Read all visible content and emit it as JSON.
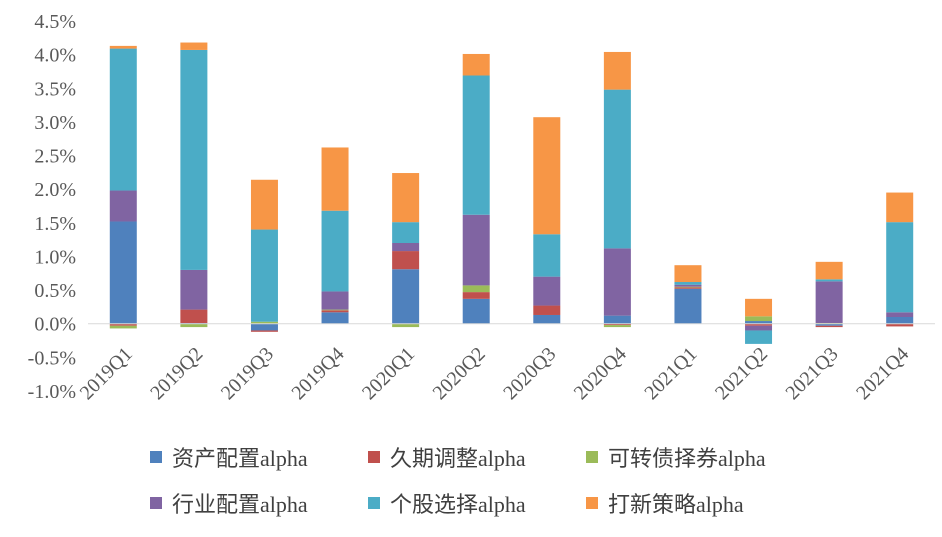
{
  "chart_data": {
    "type": "bar",
    "stacked": true,
    "categories": [
      "2019Q1",
      "2019Q2",
      "2019Q3",
      "2019Q4",
      "2020Q1",
      "2020Q2",
      "2020Q3",
      "2020Q4",
      "2021Q1",
      "2021Q2",
      "2021Q3",
      "2021Q4"
    ],
    "series": [
      {
        "name": "资产配置alpha",
        "color": "#4F81BD",
        "values": [
          1.52,
          0.01,
          -0.1,
          0.17,
          0.81,
          0.37,
          0.13,
          0.12,
          0.52,
          0.04,
          -0.03,
          0.1
        ]
      },
      {
        "name": "久期调整alpha",
        "color": "#C0504D",
        "values": [
          -0.03,
          0.2,
          -0.02,
          0.03,
          0.27,
          0.1,
          0.14,
          -0.02,
          0.02,
          -0.03,
          -0.02,
          -0.04
        ]
      },
      {
        "name": "可转债择券alpha",
        "color": "#9BBB59",
        "values": [
          -0.04,
          -0.05,
          0.03,
          0.01,
          -0.05,
          0.1,
          0.0,
          -0.03,
          0.01,
          0.07,
          0.01,
          0.0
        ]
      },
      {
        "name": "行业配置alpha",
        "color": "#8064A2",
        "values": [
          0.46,
          0.59,
          0.0,
          0.27,
          0.12,
          1.05,
          0.43,
          1.0,
          0.03,
          -0.07,
          0.62,
          0.07
        ]
      },
      {
        "name": "个股选择alpha",
        "color": "#4BACC6",
        "values": [
          2.11,
          3.27,
          1.37,
          1.2,
          0.31,
          2.07,
          0.63,
          2.36,
          0.04,
          -0.2,
          0.03,
          1.34
        ]
      },
      {
        "name": "打新策略alpha",
        "color": "#F79646",
        "values": [
          0.04,
          0.11,
          0.74,
          0.94,
          0.73,
          0.32,
          1.74,
          0.56,
          0.25,
          0.26,
          0.26,
          0.44
        ]
      }
    ],
    "y_ticks": [
      "-1.0%",
      "-0.5%",
      "0.0%",
      "0.5%",
      "1.0%",
      "1.5%",
      "2.0%",
      "2.5%",
      "3.0%",
      "3.5%",
      "4.0%",
      "4.5%"
    ],
    "ylim": [
      -1.0,
      4.5
    ],
    "y_unit": "%",
    "grid": false,
    "legend_position": "bottom",
    "title": "",
    "xlabel": "",
    "ylabel": ""
  }
}
